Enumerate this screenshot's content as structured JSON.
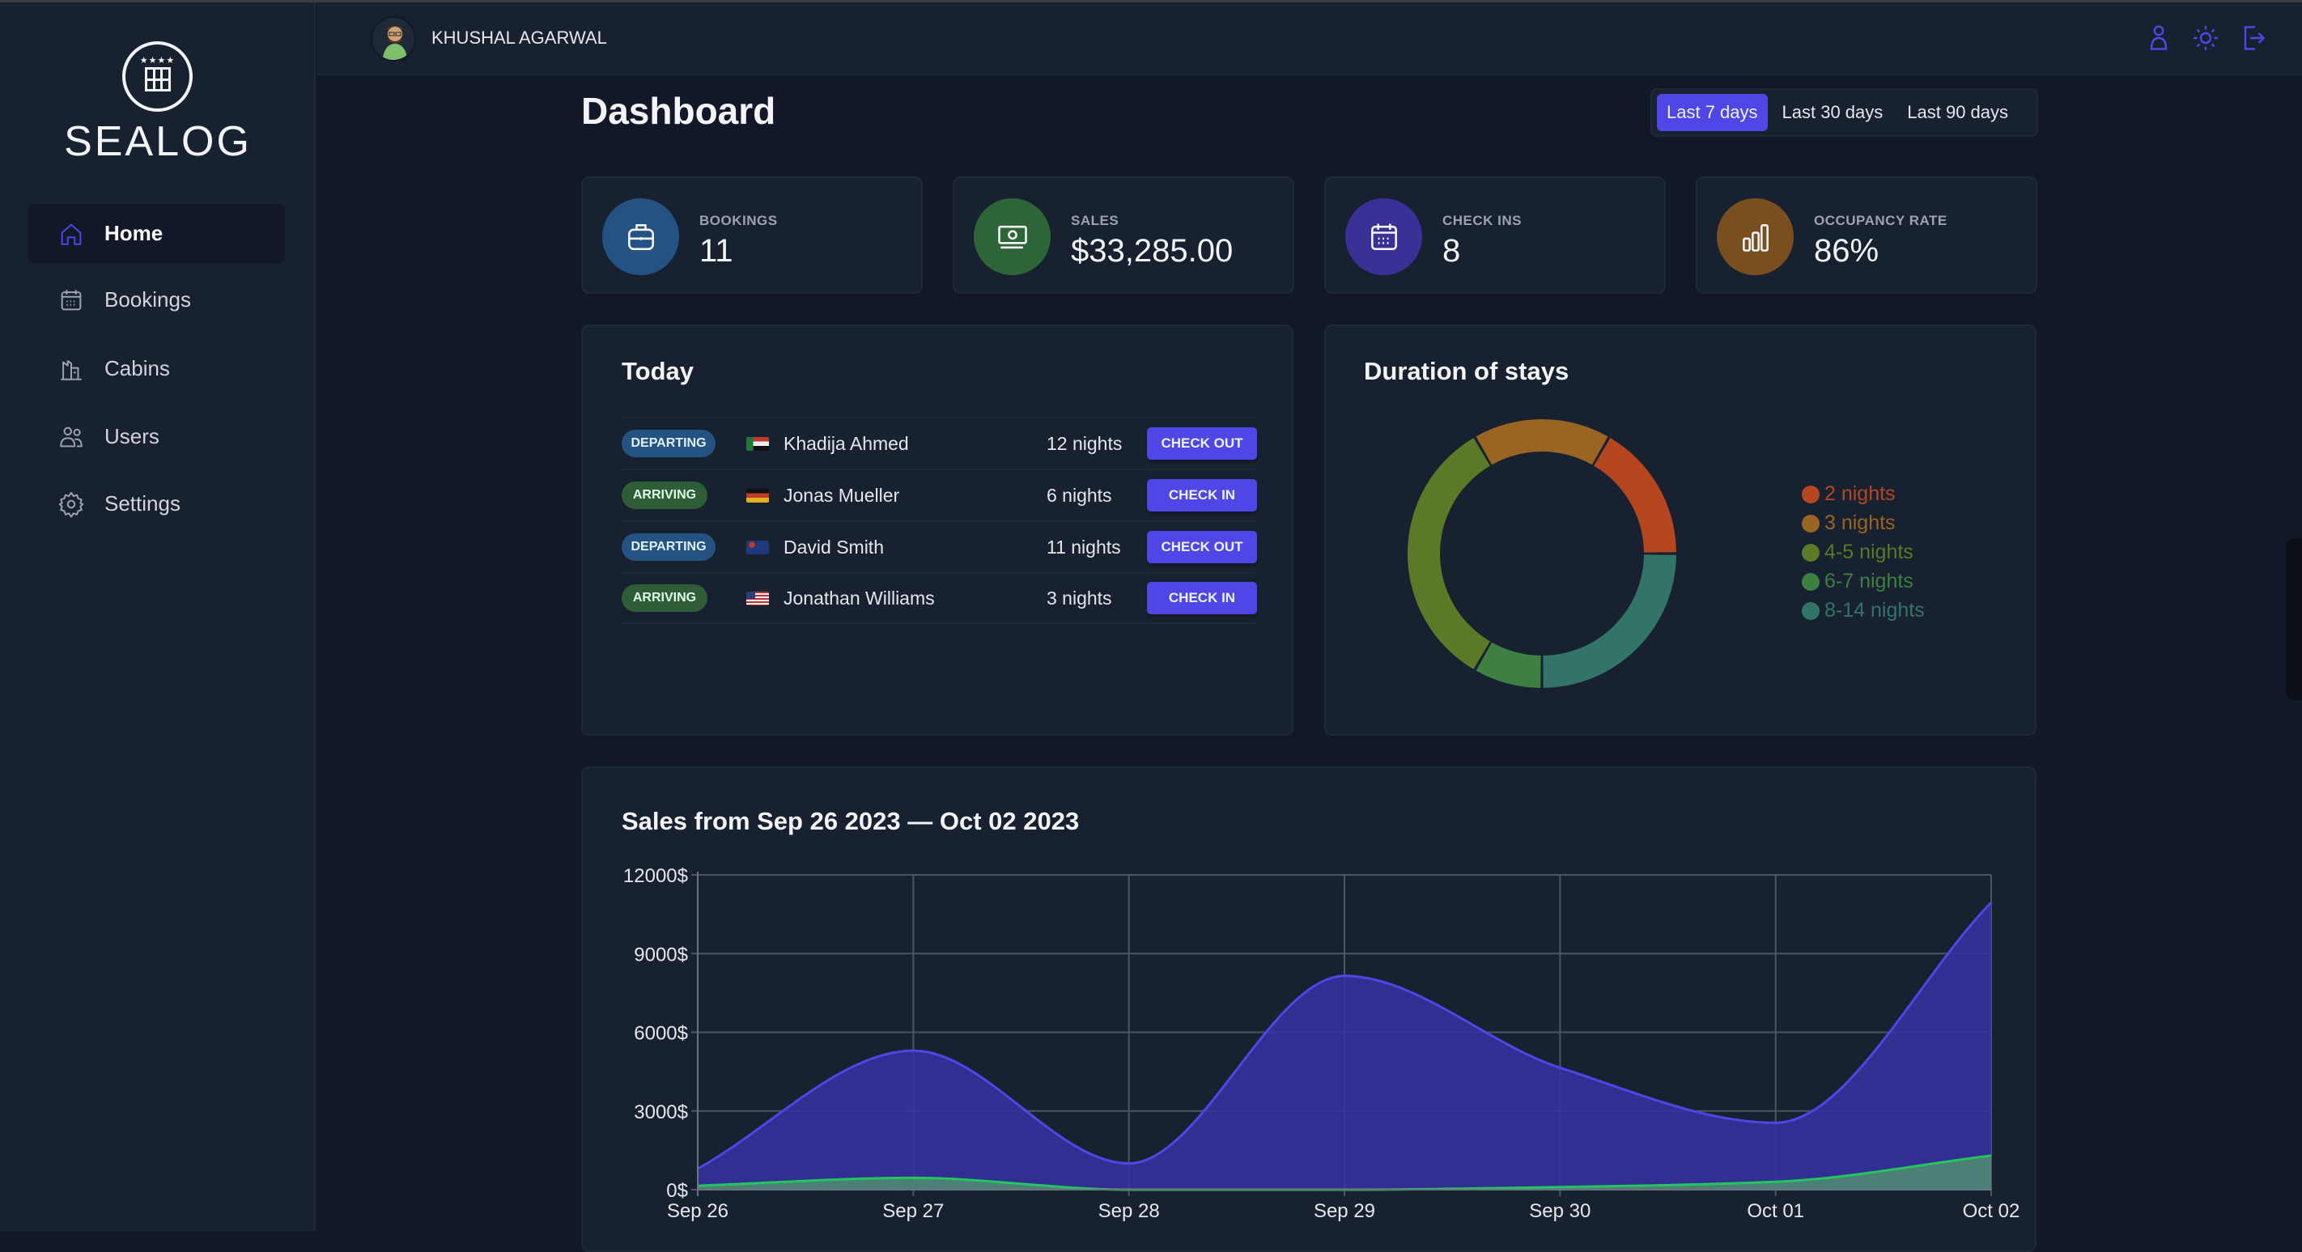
{
  "app": {
    "name": "SEALOG"
  },
  "sidebar": {
    "items": [
      {
        "label": "Home",
        "icon": "home-icon",
        "active": true
      },
      {
        "label": "Bookings",
        "icon": "calendar-icon"
      },
      {
        "label": "Cabins",
        "icon": "building-icon"
      },
      {
        "label": "Users",
        "icon": "users-icon"
      },
      {
        "label": "Settings",
        "icon": "gear-icon"
      }
    ]
  },
  "header": {
    "user_name": "KHUSHAL AGARWAL",
    "icons": [
      "user-icon",
      "sun-icon",
      "logout-icon"
    ]
  },
  "page": {
    "title": "Dashboard"
  },
  "filter": {
    "options": [
      "Last 7 days",
      "Last 30 days",
      "Last 90 days"
    ],
    "selected": "Last 7 days"
  },
  "stats": [
    {
      "label": "BOOKINGS",
      "value": "11",
      "icon": "briefcase-icon",
      "color": "#245282"
    },
    {
      "label": "SALES",
      "value": "$33,285.00",
      "icon": "banknote-icon",
      "color": "#2e6538"
    },
    {
      "label": "CHECK INS",
      "value": "8",
      "icon": "calendar-icon",
      "color": "#3a3196"
    },
    {
      "label": "OCCUPANCY RATE",
      "value": "86%",
      "icon": "bar-chart-icon",
      "color": "#7a4f1f"
    }
  ],
  "today": {
    "title": "Today",
    "rows": [
      {
        "status": "DEPARTING",
        "flag": "sudan",
        "guest": "Khadija Ahmed",
        "nights": "12 nights",
        "action": "CHECK OUT"
      },
      {
        "status": "ARRIVING",
        "flag": "germany",
        "guest": "Jonas Mueller",
        "nights": "6 nights",
        "action": "CHECK IN"
      },
      {
        "status": "DEPARTING",
        "flag": "australia",
        "guest": "David Smith",
        "nights": "11 nights",
        "action": "CHECK OUT"
      },
      {
        "status": "ARRIVING",
        "flag": "usa",
        "guest": "Jonathan Williams",
        "nights": "3 nights",
        "action": "CHECK IN"
      }
    ]
  },
  "chart_data": [
    {
      "type": "pie",
      "title": "Duration of stays",
      "donut": true,
      "legend": "right",
      "categories": [
        "2 nights",
        "3 nights",
        "4-5 nights",
        "6-7 nights",
        "8-14 nights"
      ],
      "values": [
        2,
        2,
        4,
        1,
        3
      ],
      "colors": [
        "#b5461f",
        "#9a6522",
        "#5a7a27",
        "#3e7f42",
        "#337468"
      ]
    },
    {
      "type": "area",
      "title": "Sales from Sep 26 2023 — Oct 02 2023",
      "categories": [
        "Sep 26",
        "Sep 27",
        "Sep 28",
        "Sep 29",
        "Sep 30",
        "Oct 01",
        "Oct 02"
      ],
      "series": [
        {
          "values": [
            800,
            5300,
            1000,
            8150,
            4650,
            2550,
            10950
          ],
          "color": "#4f46e5"
        },
        {
          "values": [
            150,
            450,
            0,
            0,
            100,
            300,
            1300
          ],
          "color": "#22c55e"
        }
      ],
      "yticks": [
        "0$",
        "3000$",
        "6000$",
        "9000$",
        "12000$"
      ],
      "ylim": [
        0,
        12000
      ],
      "grid": true
    }
  ]
}
